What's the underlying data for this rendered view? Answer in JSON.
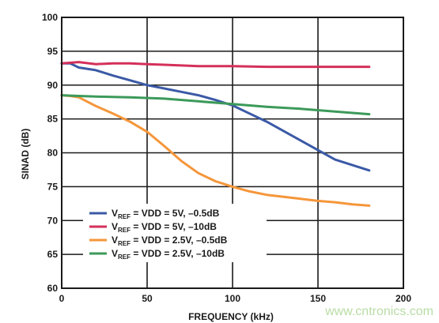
{
  "chart_data": {
    "type": "line",
    "title": "",
    "xlabel": "FREQUENCY (kHz)",
    "ylabel": "SINAD (dB)",
    "xlim": [
      0,
      200
    ],
    "ylim": [
      60,
      100
    ],
    "xticks": [
      0,
      50,
      100,
      150,
      200
    ],
    "yticks": [
      60,
      65,
      70,
      75,
      80,
      85,
      90,
      95,
      100
    ],
    "grid": true,
    "legend_position": "bottom-left",
    "series": [
      {
        "name_parts": [
          "V",
          "REF",
          " = VDD = 5V, –0.5dB"
        ],
        "color": "#3b5aa6",
        "points": [
          [
            0,
            93.2
          ],
          [
            5,
            93.2
          ],
          [
            10,
            92.6
          ],
          [
            20,
            92.2
          ],
          [
            30,
            91.4
          ],
          [
            40,
            90.7
          ],
          [
            50,
            90.0
          ],
          [
            60,
            89.5
          ],
          [
            70,
            89.0
          ],
          [
            80,
            88.5
          ],
          [
            90,
            87.8
          ],
          [
            100,
            87.0
          ],
          [
            110,
            85.8
          ],
          [
            120,
            84.6
          ],
          [
            130,
            83.2
          ],
          [
            140,
            81.8
          ],
          [
            150,
            80.4
          ],
          [
            160,
            79.0
          ],
          [
            170,
            78.2
          ],
          [
            180,
            77.4
          ]
        ]
      },
      {
        "name_parts": [
          "V",
          "REF",
          " = VDD = 5V, –10dB"
        ],
        "color": "#d4305a",
        "points": [
          [
            0,
            93.2
          ],
          [
            10,
            93.4
          ],
          [
            20,
            93.1
          ],
          [
            30,
            93.2
          ],
          [
            40,
            93.2
          ],
          [
            50,
            93.1
          ],
          [
            60,
            93.0
          ],
          [
            70,
            92.9
          ],
          [
            80,
            92.8
          ],
          [
            90,
            92.8
          ],
          [
            100,
            92.8
          ],
          [
            120,
            92.7
          ],
          [
            140,
            92.7
          ],
          [
            160,
            92.7
          ],
          [
            180,
            92.7
          ]
        ]
      },
      {
        "name_parts": [
          "V",
          "REF",
          " = VDD = 2.5V, –0.5dB"
        ],
        "color": "#f5963a",
        "points": [
          [
            0,
            88.5
          ],
          [
            5,
            88.4
          ],
          [
            10,
            88.2
          ],
          [
            20,
            86.9
          ],
          [
            30,
            85.8
          ],
          [
            40,
            84.6
          ],
          [
            50,
            83.1
          ],
          [
            60,
            81.0
          ],
          [
            70,
            78.8
          ],
          [
            80,
            77.0
          ],
          [
            90,
            75.8
          ],
          [
            100,
            75.0
          ],
          [
            110,
            74.3
          ],
          [
            120,
            73.8
          ],
          [
            130,
            73.5
          ],
          [
            140,
            73.2
          ],
          [
            150,
            72.9
          ],
          [
            160,
            72.7
          ],
          [
            170,
            72.4
          ],
          [
            180,
            72.2
          ]
        ]
      },
      {
        "name_parts": [
          "V",
          "REF",
          " = VDD = 2.5V, –10dB"
        ],
        "color": "#3c9a5a",
        "points": [
          [
            0,
            88.5
          ],
          [
            10,
            88.4
          ],
          [
            20,
            88.3
          ],
          [
            40,
            88.2
          ],
          [
            60,
            88.0
          ],
          [
            80,
            87.6
          ],
          [
            100,
            87.2
          ],
          [
            120,
            86.8
          ],
          [
            140,
            86.5
          ],
          [
            160,
            86.1
          ],
          [
            180,
            85.7
          ]
        ]
      }
    ]
  },
  "watermark": "www.cntronics.com"
}
